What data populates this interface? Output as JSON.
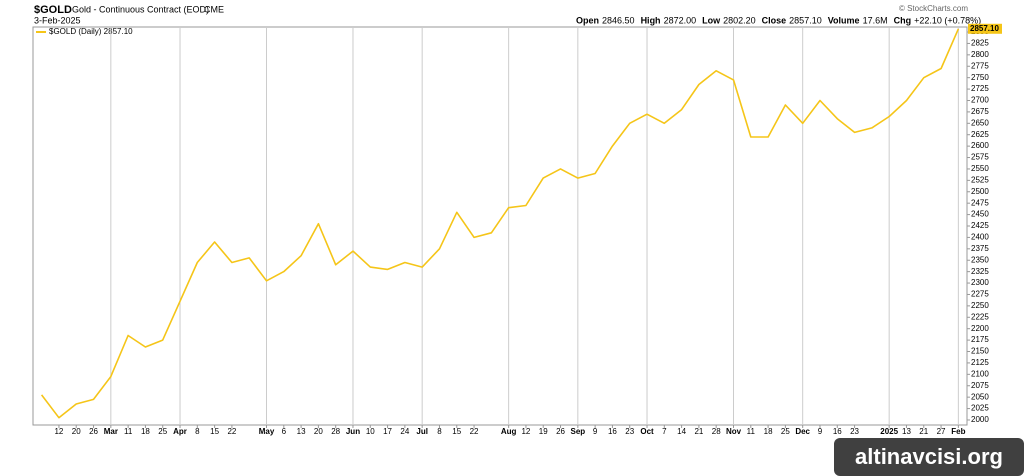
{
  "header": {
    "symbol": "$GOLD",
    "description": "Gold - Continuous Contract (EOD)",
    "exchange": "CME",
    "date": "3-Feb-2025",
    "copyright": "© StockCharts.com",
    "quote": [
      {
        "label": "Open",
        "value": "2846.50"
      },
      {
        "label": "High",
        "value": "2872.00"
      },
      {
        "label": "Low",
        "value": "2802.20"
      },
      {
        "label": "Close",
        "value": "2857.10"
      },
      {
        "label": "Volume",
        "value": "17.6M"
      },
      {
        "label": "Chg",
        "value": "+22.10 (+0.78%)"
      }
    ]
  },
  "watermark": "altinavcisi.org",
  "chart_data": {
    "type": "line",
    "categories": [
      null,
      "12",
      "20",
      "26",
      "Mar",
      "11",
      "18",
      "25",
      "Apr",
      "8",
      "15",
      "22",
      null,
      "May",
      "6",
      "13",
      "20",
      "28",
      "Jun",
      "10",
      "17",
      "24",
      "Jul",
      "8",
      "15",
      "22",
      null,
      "Aug",
      "12",
      "19",
      "26",
      "Sep",
      "9",
      "16",
      "23",
      "Oct",
      "7",
      "14",
      "21",
      "28",
      "Nov",
      "11",
      "18",
      "25",
      "Dec",
      "9",
      "16",
      "23",
      null,
      "2025",
      "13",
      "21",
      "27",
      "Feb"
    ],
    "series": [
      {
        "name": "$GOLD (Daily) 2857.10",
        "color": "#f5c518",
        "values": [
          2055,
          2005,
          2035,
          2045,
          2095,
          2185,
          2160,
          2175,
          2260,
          2345,
          2390,
          2345,
          2355,
          2305,
          2325,
          2360,
          2430,
          2340,
          2370,
          2335,
          2330,
          2345,
          2335,
          2375,
          2455,
          2400,
          2410,
          2465,
          2470,
          2530,
          2550,
          2530,
          2540,
          2600,
          2650,
          2670,
          2650,
          2680,
          2735,
          2765,
          2745,
          2620,
          2620,
          2690,
          2650,
          2700,
          2660,
          2630,
          2640,
          2665,
          2700,
          2750,
          2770,
          2857.1
        ]
      }
    ],
    "last_label": "2857.10",
    "ylim": [
      1989,
      2861
    ],
    "yticks": [
      2000,
      2025,
      2050,
      2075,
      2100,
      2125,
      2150,
      2175,
      2200,
      2225,
      2250,
      2275,
      2300,
      2325,
      2350,
      2375,
      2400,
      2425,
      2450,
      2475,
      2500,
      2525,
      2550,
      2575,
      2600,
      2625,
      2650,
      2675,
      2700,
      2725,
      2750,
      2775,
      2800,
      2825,
      2850
    ]
  }
}
